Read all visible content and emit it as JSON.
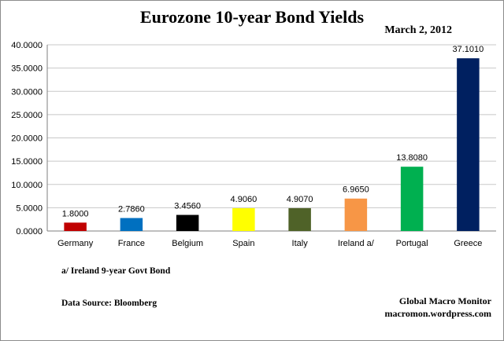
{
  "chart_data": {
    "type": "bar",
    "title": "Eurozone 10-year Bond Yields",
    "subtitle": "March 2, 2012",
    "categories": [
      "Germany",
      "France",
      "Belgium",
      "Spain",
      "Italy",
      "Ireland  a/",
      "Portugal",
      "Greece"
    ],
    "values": [
      1.8,
      2.786,
      3.456,
      4.906,
      4.907,
      6.965,
      13.808,
      37.101
    ],
    "data_labels": [
      "1.8000",
      "2.7860",
      "3.4560",
      "4.9060",
      "4.9070",
      "6.9650",
      "13.8080",
      "37.1010"
    ],
    "bar_colors": [
      "#c00000",
      "#0070c0",
      "#000000",
      "#ffff00",
      "#4f6228",
      "#f79646",
      "#00b050",
      "#002060"
    ],
    "ylim": [
      0,
      40
    ],
    "yticks": [
      0,
      5,
      10,
      15,
      20,
      25,
      30,
      35,
      40
    ],
    "ytick_labels": [
      "0.0000",
      "5.0000",
      "10.0000",
      "15.0000",
      "20.0000",
      "25.0000",
      "30.0000",
      "35.0000",
      "40.0000"
    ],
    "grid": true,
    "legend": "none",
    "xlabel": "",
    "ylabel": ""
  },
  "notes": {
    "footnote": "a/ Ireland 9-year Govt Bond",
    "source": "Data Source:  Bloomberg",
    "credit_line1": "Global Macro Monitor",
    "credit_line2": "macromon.wordpress.com"
  }
}
